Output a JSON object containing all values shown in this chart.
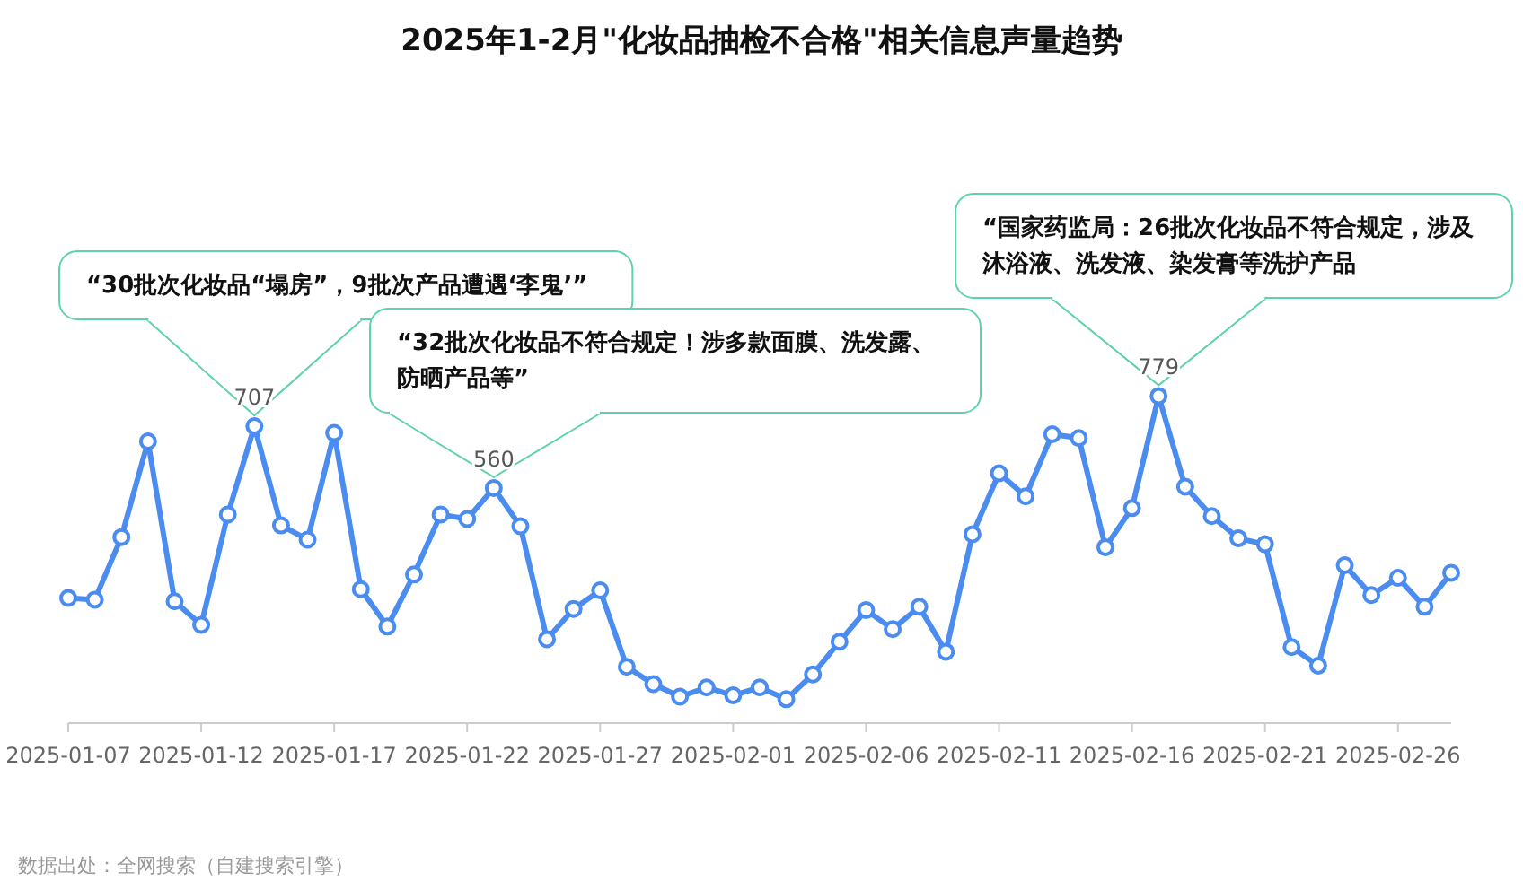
{
  "chart_data": {
    "type": "line",
    "title": "2025年1-2月\"化妆品抽检不合格\"相关信息声量趋势",
    "x": [
      "2025-01-07",
      "2025-01-08",
      "2025-01-09",
      "2025-01-10",
      "2025-01-11",
      "2025-01-12",
      "2025-01-13",
      "2025-01-14",
      "2025-01-15",
      "2025-01-16",
      "2025-01-17",
      "2025-01-18",
      "2025-01-19",
      "2025-01-20",
      "2025-01-21",
      "2025-01-22",
      "2025-01-23",
      "2025-01-24",
      "2025-01-25",
      "2025-01-26",
      "2025-01-27",
      "2025-01-28",
      "2025-01-29",
      "2025-01-30",
      "2025-01-31",
      "2025-02-01",
      "2025-02-02",
      "2025-02-03",
      "2025-02-04",
      "2025-02-05",
      "2025-02-06",
      "2025-02-07",
      "2025-02-08",
      "2025-02-09",
      "2025-02-10",
      "2025-02-11",
      "2025-02-12",
      "2025-02-13",
      "2025-02-14",
      "2025-02-15",
      "2025-02-16",
      "2025-02-17",
      "2025-02-18",
      "2025-02-19",
      "2025-02-20",
      "2025-02-21",
      "2025-02-22",
      "2025-02-23",
      "2025-02-24",
      "2025-02-25",
      "2025-02-26",
      "2025-02-27",
      "2025-02-28"
    ],
    "series": [
      {
        "color": "#4a8cf0",
        "values": [
          298,
          294,
          443,
          671,
          290,
          234,
          497,
          707,
          471,
          437,
          691,
          319,
          230,
          354,
          497,
          486,
          560,
          469,
          200,
          272,
          316,
          134,
          93,
          63,
          85,
          66,
          85,
          57,
          116,
          194,
          269,
          224,
          277,
          170,
          450,
          595,
          540,
          688,
          679,
          419,
          512,
          779,
          563,
          493,
          440,
          426,
          181,
          137,
          376,
          305,
          346,
          277,
          358
        ],
        "value_labels": [
          null,
          null,
          null,
          null,
          null,
          null,
          null,
          "707",
          null,
          null,
          null,
          null,
          null,
          null,
          null,
          null,
          "560",
          null,
          null,
          null,
          null,
          null,
          null,
          null,
          null,
          null,
          null,
          null,
          null,
          null,
          null,
          null,
          null,
          null,
          null,
          null,
          null,
          null,
          null,
          null,
          null,
          "779",
          null,
          null,
          null,
          null,
          null,
          null,
          null,
          null,
          null,
          null,
          null
        ]
      }
    ],
    "xlim": [
      "2025-01-07",
      "2025-02-28"
    ],
    "xticks": [
      "2025-01-07",
      "2025-01-12",
      "2025-01-17",
      "2025-01-22",
      "2025-01-27",
      "2025-02-01",
      "2025-02-06",
      "2025-02-11",
      "2025-02-16",
      "2025-02-21",
      "2025-02-26"
    ],
    "tick_labels": "x",
    "marker": "circle",
    "line_style": "solid",
    "annotations": [
      {
        "text": "“30批次化妆品“塌房”，9批次产品遭遇‘李鬼’”",
        "x": "2025-01-14",
        "y": 707
      },
      {
        "text": "“32批次化妆品不符合规定！涉多款面膜、洗发露、防晒产品等”",
        "x": "2025-01-23",
        "y": 560
      },
      {
        "text": "“国家药监局：26批次化妆品不符合规定，涉及沐浴液、洗发液、染发膏等洗护产品",
        "x": "2025-02-17",
        "y": 779
      },
      "数据出处：全网搜索（自建搜索引擎）"
    ]
  }
}
